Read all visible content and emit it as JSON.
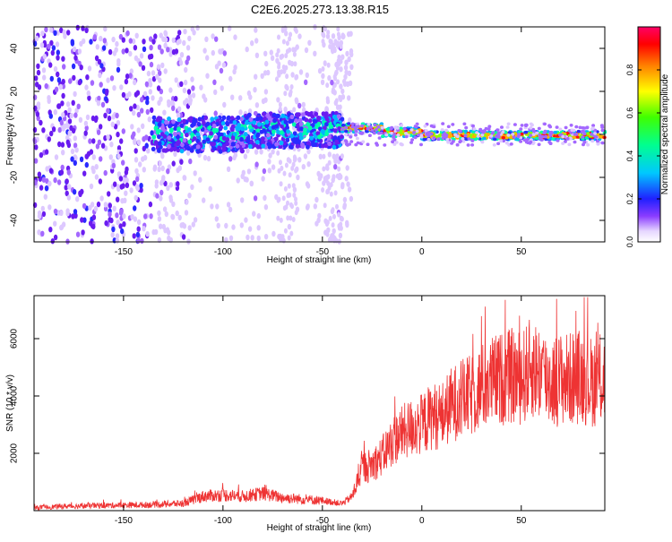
{
  "chart_data": [
    {
      "type": "heatmap",
      "title": "C2E6.2025.273.13.38.R15",
      "xlabel": "Height of straight line (km)",
      "ylabel": "Frequency (Hz)",
      "xlim": [
        -195,
        92
      ],
      "ylim": [
        -50,
        50
      ],
      "xticks": [
        -150,
        -100,
        -50,
        0,
        50
      ],
      "yticks": [
        -40,
        -20,
        0,
        20,
        40
      ],
      "colorbar": {
        "label": "Normalized spectral amplitude",
        "range": [
          0,
          1
        ],
        "ticks": [
          "0.0",
          "0.2",
          "0.4",
          "0.6",
          "0.8"
        ]
      },
      "description_of_signal": "Central band at ~0-5 Hz; scattered noise for heights below ~-40 km, narrow strong line near 0 Hz above -35 km"
    },
    {
      "type": "line",
      "xlabel": "Height of straight line (km)",
      "ylabel": "SNR (10 * v/v)",
      "xlim": [
        -195,
        92
      ],
      "ylim": [
        0,
        7500
      ],
      "xticks": [
        -150,
        -100,
        -50,
        0,
        50
      ],
      "yticks": [
        2000,
        4000,
        6000
      ],
      "color": "#ee3333",
      "series": [
        {
          "name": "SNR",
          "x": [
            -195,
            -180,
            -160,
            -140,
            -120,
            -110,
            -100,
            -90,
            -80,
            -70,
            -60,
            -50,
            -40,
            -35,
            -30,
            -25,
            -20,
            -15,
            -10,
            -5,
            0,
            5,
            10,
            15,
            20,
            25,
            30,
            35,
            40,
            45,
            50,
            55,
            60,
            65,
            70,
            75,
            80,
            85,
            90
          ],
          "values": [
            100,
            150,
            180,
            200,
            250,
            500,
            550,
            500,
            600,
            450,
            400,
            350,
            250,
            500,
            1500,
            1600,
            1900,
            2400,
            2700,
            2900,
            3000,
            3300,
            3300,
            3700,
            3900,
            4000,
            4300,
            4500,
            4600,
            4700,
            4600,
            5000,
            4800,
            4500,
            4600,
            4600,
            4700,
            4500,
            4600
          ]
        }
      ]
    }
  ]
}
